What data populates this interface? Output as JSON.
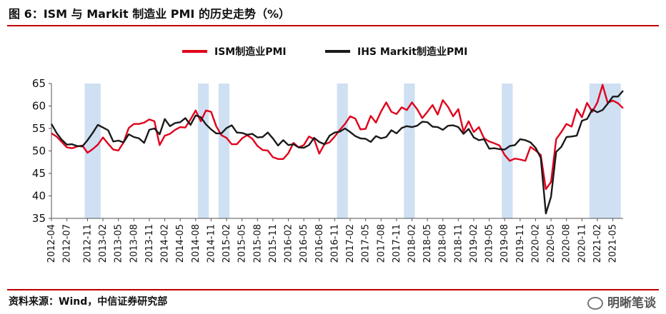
{
  "header": {
    "title": "图 6：ISM 与 Markit 制造业 PMI 的历史走势（%）"
  },
  "footer": {
    "source": "资料来源：Wind，中信证券研究部",
    "watermark": "明晰笔谈"
  },
  "colors": {
    "accent": "#c00000",
    "ism": "#e0001b",
    "markit": "#1a1a1a",
    "recession_band": "#cfe0f3"
  },
  "chart_data": {
    "type": "line",
    "title": "",
    "xlabel": "",
    "ylabel": "",
    "ylim": [
      35,
      65
    ],
    "yticks": [
      35,
      40,
      45,
      50,
      55,
      60,
      65
    ],
    "legend_position": "top-center",
    "grid": false,
    "x_tick_labels": [
      "2012-04",
      "2012-07",
      "2012-11",
      "2013-02",
      "2013-05",
      "2013-08",
      "2013-11",
      "2014-02",
      "2014-05",
      "2014-08",
      "2014-11",
      "2015-02",
      "2015-05",
      "2015-08",
      "2015-11",
      "2016-02",
      "2016-05",
      "2016-08",
      "2016-11",
      "2017-02",
      "2017-05",
      "2017-08",
      "2017-11",
      "2018-02",
      "2018-05",
      "2018-08",
      "2018-11",
      "2019-02",
      "2019-05",
      "2019-08",
      "2019-11",
      "2020-02",
      "2020-05",
      "2020-08",
      "2020-11",
      "2021-02",
      "2021-05"
    ],
    "shaded_periods": [
      [
        "2012-11",
        "2013-01"
      ],
      [
        "2014-09",
        "2014-10"
      ],
      [
        "2015-01",
        "2015-02"
      ],
      [
        "2016-12",
        "2017-01"
      ],
      [
        "2018-01",
        "2018-02"
      ],
      [
        "2019-08",
        "2019-09"
      ],
      [
        "2021-01",
        "2021-06"
      ]
    ],
    "series": [
      {
        "name": "ISM制造业PMI",
        "color": "#e0001b",
        "points": [
          [
            "2012-04",
            53.9
          ],
          [
            "2012-05",
            53.2
          ],
          [
            "2012-06",
            52.0
          ],
          [
            "2012-07",
            50.8
          ],
          [
            "2012-08",
            50.6
          ],
          [
            "2012-09",
            51.0
          ],
          [
            "2012-10",
            51.2
          ],
          [
            "2012-11",
            49.6
          ],
          [
            "2012-12",
            50.4
          ],
          [
            "2013-01",
            51.4
          ],
          [
            "2013-02",
            53.0
          ],
          [
            "2013-03",
            51.6
          ],
          [
            "2013-04",
            50.3
          ],
          [
            "2013-05",
            50.1
          ],
          [
            "2013-06",
            51.9
          ],
          [
            "2013-07",
            55.1
          ],
          [
            "2013-08",
            56.0
          ],
          [
            "2013-09",
            56.0
          ],
          [
            "2013-10",
            56.3
          ],
          [
            "2013-11",
            57.0
          ],
          [
            "2013-12",
            56.6
          ],
          [
            "2014-01",
            51.3
          ],
          [
            "2014-02",
            53.4
          ],
          [
            "2014-03",
            53.8
          ],
          [
            "2014-04",
            54.7
          ],
          [
            "2014-05",
            55.3
          ],
          [
            "2014-06",
            55.2
          ],
          [
            "2014-07",
            57.0
          ],
          [
            "2014-08",
            59.0
          ],
          [
            "2014-09",
            56.6
          ],
          [
            "2014-10",
            59.0
          ],
          [
            "2014-11",
            58.7
          ],
          [
            "2014-12",
            55.5
          ],
          [
            "2015-01",
            53.5
          ],
          [
            "2015-02",
            52.9
          ],
          [
            "2015-03",
            51.5
          ],
          [
            "2015-04",
            51.5
          ],
          [
            "2015-05",
            52.8
          ],
          [
            "2015-06",
            53.5
          ],
          [
            "2015-07",
            52.7
          ],
          [
            "2015-08",
            51.1
          ],
          [
            "2015-09",
            50.2
          ],
          [
            "2015-10",
            50.1
          ],
          [
            "2015-11",
            48.6
          ],
          [
            "2015-12",
            48.2
          ],
          [
            "2016-01",
            48.2
          ],
          [
            "2016-02",
            49.5
          ],
          [
            "2016-03",
            51.8
          ],
          [
            "2016-04",
            50.8
          ],
          [
            "2016-05",
            51.3
          ],
          [
            "2016-06",
            53.2
          ],
          [
            "2016-07",
            52.6
          ],
          [
            "2016-08",
            49.4
          ],
          [
            "2016-09",
            51.5
          ],
          [
            "2016-10",
            51.9
          ],
          [
            "2016-11",
            53.2
          ],
          [
            "2016-12",
            54.7
          ],
          [
            "2017-01",
            56.0
          ],
          [
            "2017-02",
            57.7
          ],
          [
            "2017-03",
            57.2
          ],
          [
            "2017-04",
            54.8
          ],
          [
            "2017-05",
            54.9
          ],
          [
            "2017-06",
            57.8
          ],
          [
            "2017-07",
            56.3
          ],
          [
            "2017-08",
            58.8
          ],
          [
            "2017-09",
            60.8
          ],
          [
            "2017-10",
            58.7
          ],
          [
            "2017-11",
            58.2
          ],
          [
            "2017-12",
            59.7
          ],
          [
            "2018-01",
            59.1
          ],
          [
            "2018-02",
            60.8
          ],
          [
            "2018-03",
            59.3
          ],
          [
            "2018-04",
            57.3
          ],
          [
            "2018-05",
            58.7
          ],
          [
            "2018-06",
            60.2
          ],
          [
            "2018-07",
            58.1
          ],
          [
            "2018-08",
            61.3
          ],
          [
            "2018-09",
            59.8
          ],
          [
            "2018-10",
            57.7
          ],
          [
            "2018-11",
            59.3
          ],
          [
            "2018-12",
            54.3
          ],
          [
            "2019-01",
            56.6
          ],
          [
            "2019-02",
            54.2
          ],
          [
            "2019-03",
            55.3
          ],
          [
            "2019-04",
            52.8
          ],
          [
            "2019-05",
            52.1
          ],
          [
            "2019-06",
            51.7
          ],
          [
            "2019-07",
            51.2
          ],
          [
            "2019-08",
            49.1
          ],
          [
            "2019-09",
            47.8
          ],
          [
            "2019-10",
            48.3
          ],
          [
            "2019-11",
            48.1
          ],
          [
            "2019-12",
            47.8
          ],
          [
            "2020-01",
            50.9
          ],
          [
            "2020-02",
            50.1
          ],
          [
            "2020-03",
            49.1
          ],
          [
            "2020-04",
            41.5
          ],
          [
            "2020-05",
            43.1
          ],
          [
            "2020-06",
            52.6
          ],
          [
            "2020-07",
            54.2
          ],
          [
            "2020-08",
            56.0
          ],
          [
            "2020-09",
            55.4
          ],
          [
            "2020-10",
            59.3
          ],
          [
            "2020-11",
            57.5
          ],
          [
            "2020-12",
            60.7
          ],
          [
            "2021-01",
            58.7
          ],
          [
            "2021-02",
            60.8
          ],
          [
            "2021-03",
            64.7
          ],
          [
            "2021-04",
            60.7
          ],
          [
            "2021-05",
            61.2
          ],
          [
            "2021-06",
            60.6
          ],
          [
            "2021-07",
            59.5
          ]
        ]
      },
      {
        "name": "IHS Markit制造业PMI",
        "color": "#1a1a1a",
        "points": [
          [
            "2012-04",
            56.0
          ],
          [
            "2012-05",
            54.0
          ],
          [
            "2012-06",
            52.5
          ],
          [
            "2012-07",
            51.4
          ],
          [
            "2012-08",
            51.5
          ],
          [
            "2012-09",
            51.1
          ],
          [
            "2012-10",
            51.0
          ],
          [
            "2012-11",
            52.4
          ],
          [
            "2012-12",
            54.0
          ],
          [
            "2013-01",
            55.8
          ],
          [
            "2013-02",
            55.2
          ],
          [
            "2013-03",
            54.6
          ],
          [
            "2013-04",
            52.1
          ],
          [
            "2013-05",
            52.3
          ],
          [
            "2013-06",
            51.9
          ],
          [
            "2013-07",
            53.7
          ],
          [
            "2013-08",
            53.1
          ],
          [
            "2013-09",
            52.8
          ],
          [
            "2013-10",
            51.8
          ],
          [
            "2013-11",
            54.7
          ],
          [
            "2013-12",
            55.0
          ],
          [
            "2014-01",
            53.7
          ],
          [
            "2014-02",
            57.1
          ],
          [
            "2014-03",
            55.5
          ],
          [
            "2014-04",
            56.2
          ],
          [
            "2014-05",
            56.4
          ],
          [
            "2014-06",
            57.3
          ],
          [
            "2014-07",
            55.8
          ],
          [
            "2014-08",
            57.9
          ],
          [
            "2014-09",
            57.5
          ],
          [
            "2014-10",
            55.9
          ],
          [
            "2014-11",
            54.8
          ],
          [
            "2014-12",
            53.9
          ],
          [
            "2015-01",
            53.9
          ],
          [
            "2015-02",
            55.1
          ],
          [
            "2015-03",
            55.7
          ],
          [
            "2015-04",
            54.1
          ],
          [
            "2015-05",
            54.0
          ],
          [
            "2015-06",
            53.6
          ],
          [
            "2015-07",
            53.8
          ],
          [
            "2015-08",
            53.0
          ],
          [
            "2015-09",
            53.1
          ],
          [
            "2015-10",
            54.1
          ],
          [
            "2015-11",
            52.8
          ],
          [
            "2015-12",
            51.2
          ],
          [
            "2016-01",
            52.4
          ],
          [
            "2016-02",
            51.3
          ],
          [
            "2016-03",
            51.5
          ],
          [
            "2016-04",
            50.8
          ],
          [
            "2016-05",
            50.7
          ],
          [
            "2016-06",
            51.3
          ],
          [
            "2016-07",
            52.9
          ],
          [
            "2016-08",
            52.0
          ],
          [
            "2016-09",
            51.5
          ],
          [
            "2016-10",
            53.4
          ],
          [
            "2016-11",
            54.1
          ],
          [
            "2016-12",
            54.3
          ],
          [
            "2017-01",
            55.0
          ],
          [
            "2017-02",
            54.2
          ],
          [
            "2017-03",
            53.3
          ],
          [
            "2017-04",
            52.8
          ],
          [
            "2017-05",
            52.7
          ],
          [
            "2017-06",
            52.0
          ],
          [
            "2017-07",
            53.3
          ],
          [
            "2017-08",
            52.8
          ],
          [
            "2017-09",
            53.1
          ],
          [
            "2017-10",
            54.6
          ],
          [
            "2017-11",
            53.9
          ],
          [
            "2017-12",
            55.1
          ],
          [
            "2018-01",
            55.5
          ],
          [
            "2018-02",
            55.3
          ],
          [
            "2018-03",
            55.6
          ],
          [
            "2018-04",
            56.5
          ],
          [
            "2018-05",
            56.4
          ],
          [
            "2018-06",
            55.4
          ],
          [
            "2018-07",
            55.3
          ],
          [
            "2018-08",
            54.7
          ],
          [
            "2018-09",
            55.6
          ],
          [
            "2018-10",
            55.7
          ],
          [
            "2018-11",
            55.3
          ],
          [
            "2018-12",
            53.8
          ],
          [
            "2019-01",
            54.9
          ],
          [
            "2019-02",
            53.0
          ],
          [
            "2019-03",
            52.4
          ],
          [
            "2019-04",
            52.6
          ],
          [
            "2019-05",
            50.5
          ],
          [
            "2019-06",
            50.6
          ],
          [
            "2019-07",
            50.4
          ],
          [
            "2019-08",
            50.3
          ],
          [
            "2019-09",
            51.1
          ],
          [
            "2019-10",
            51.3
          ],
          [
            "2019-11",
            52.6
          ],
          [
            "2019-12",
            52.4
          ],
          [
            "2020-01",
            51.9
          ],
          [
            "2020-02",
            50.7
          ],
          [
            "2020-03",
            48.5
          ],
          [
            "2020-04",
            36.1
          ],
          [
            "2020-05",
            39.8
          ],
          [
            "2020-06",
            49.8
          ],
          [
            "2020-07",
            50.9
          ],
          [
            "2020-08",
            53.1
          ],
          [
            "2020-09",
            53.2
          ],
          [
            "2020-10",
            53.4
          ],
          [
            "2020-11",
            56.7
          ],
          [
            "2020-12",
            57.1
          ],
          [
            "2021-01",
            59.2
          ],
          [
            "2021-02",
            58.6
          ],
          [
            "2021-03",
            59.1
          ],
          [
            "2021-04",
            60.5
          ],
          [
            "2021-05",
            62.1
          ],
          [
            "2021-06",
            62.1
          ],
          [
            "2021-07",
            63.4
          ]
        ]
      }
    ]
  }
}
